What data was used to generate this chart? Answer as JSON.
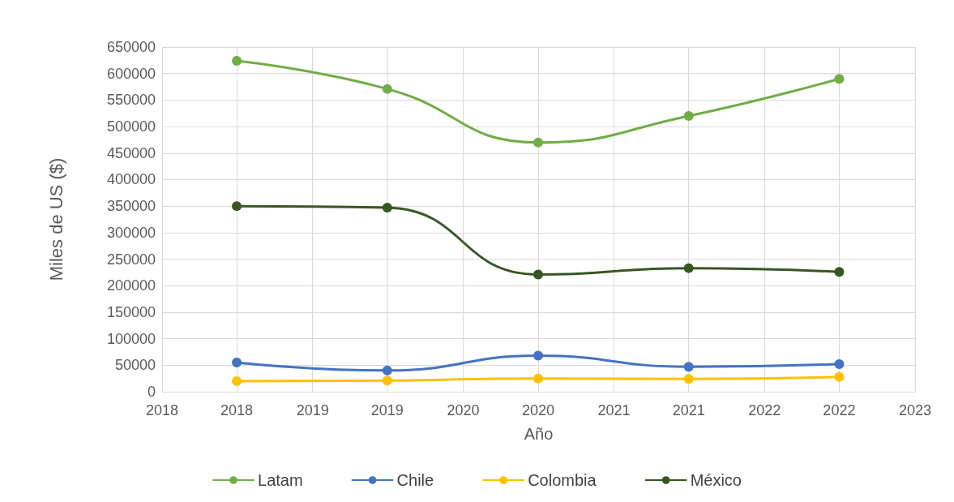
{
  "chart_data": {
    "type": "line",
    "xlabel": "Año",
    "ylabel": "Miles de US ($)",
    "x": [
      "2018-07",
      "2019-07",
      "2020-07",
      "2021-07",
      "2022-07"
    ],
    "series": [
      {
        "name": "Latam",
        "color": "#70ad47",
        "values": [
          624000,
          571000,
          470000,
          520000,
          590000
        ]
      },
      {
        "name": "Chile",
        "color": "#4472c4",
        "values": [
          55000,
          40000,
          68000,
          47000,
          52000
        ]
      },
      {
        "name": "Colombia",
        "color": "#ffc000",
        "values": [
          20000,
          21000,
          25000,
          24000,
          28000
        ]
      },
      {
        "name": "México",
        "color": "#375623",
        "values": [
          350000,
          347000,
          221000,
          233000,
          226000
        ]
      }
    ],
    "xlim": [
      "2018-01",
      "2023-01"
    ],
    "xticks": [
      {
        "value": "2018-01",
        "label": "2018"
      },
      {
        "value": "2018-07",
        "label": "2018"
      },
      {
        "value": "2019-01",
        "label": "2019"
      },
      {
        "value": "2019-07",
        "label": "2019"
      },
      {
        "value": "2020-01",
        "label": "2020"
      },
      {
        "value": "2020-07",
        "label": "2020"
      },
      {
        "value": "2021-01",
        "label": "2021"
      },
      {
        "value": "2021-07",
        "label": "2021"
      },
      {
        "value": "2022-01",
        "label": "2022"
      },
      {
        "value": "2022-07",
        "label": "2022"
      },
      {
        "value": "2023-01",
        "label": "2023"
      }
    ],
    "ylim": [
      0,
      650000
    ],
    "yticks": [
      0,
      50000,
      100000,
      150000,
      200000,
      250000,
      300000,
      350000,
      400000,
      450000,
      500000,
      550000,
      600000,
      650000
    ],
    "grid": true,
    "legend": "bottom",
    "marker": "circle",
    "line_style": "solid"
  }
}
